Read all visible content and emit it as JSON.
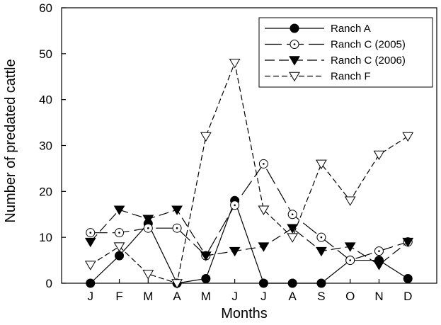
{
  "chart_data": {
    "type": "line",
    "xlabel": "Months",
    "ylabel": "Number of predated cattle",
    "ylim": [
      0,
      60
    ],
    "yticks": [
      0,
      10,
      20,
      30,
      40,
      50,
      60
    ],
    "categories": [
      "J",
      "F",
      "M",
      "A",
      "M",
      "J",
      "J",
      "A",
      "S",
      "O",
      "N",
      "D"
    ],
    "legend_position": "top-right",
    "grid": false,
    "series": [
      {
        "name": "Ranch A",
        "marker": "filled-circle",
        "dash": "solid",
        "values": [
          0,
          6,
          13,
          0,
          1,
          18,
          0,
          0,
          0,
          5,
          5,
          1
        ]
      },
      {
        "name": "Ranch C (2005)",
        "marker": "dotted-circle",
        "dash": "long-dash",
        "values": [
          11,
          11,
          12,
          12,
          6,
          17,
          26,
          15,
          10,
          5,
          7,
          9
        ]
      },
      {
        "name": "Ranch C (2006)",
        "marker": "filled-triangle-down",
        "dash": "dash",
        "values": [
          9,
          16,
          14,
          16,
          6,
          7,
          8,
          12,
          7,
          8,
          4,
          9
        ]
      },
      {
        "name": "Ranch F",
        "marker": "open-triangle-down",
        "dash": "short-dash",
        "values": [
          4,
          8,
          2,
          0,
          32,
          48,
          16,
          10,
          26,
          18,
          28,
          32
        ]
      }
    ]
  }
}
